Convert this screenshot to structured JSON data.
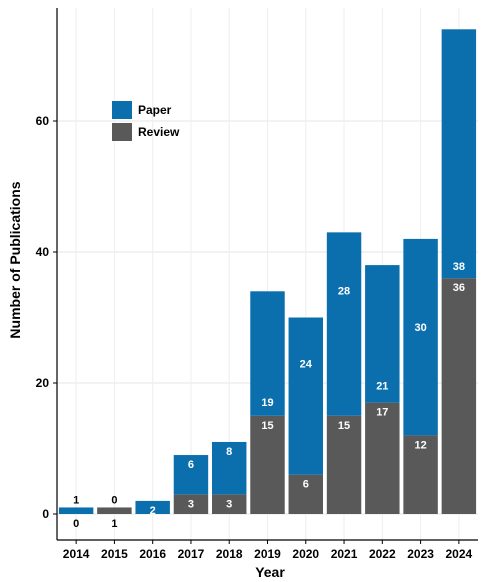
{
  "chart_data": {
    "type": "bar",
    "stacked": true,
    "categories": [
      "2014",
      "2015",
      "2016",
      "2017",
      "2018",
      "2019",
      "2020",
      "2021",
      "2022",
      "2023",
      "2024"
    ],
    "series": [
      {
        "name": "Review",
        "values": [
          0,
          1,
          0,
          3,
          3,
          15,
          6,
          15,
          17,
          12,
          36
        ],
        "color": "#595959"
      },
      {
        "name": "Paper",
        "values": [
          1,
          0,
          2,
          6,
          8,
          19,
          24,
          28,
          21,
          30,
          38
        ],
        "color": "#0b6fae"
      }
    ],
    "data_labels": {
      "Review": [
        "0",
        "1",
        "",
        "3",
        "3",
        "15",
        "6",
        "15",
        "17",
        "12",
        "36"
      ],
      "Paper": [
        "1",
        "0",
        "2",
        "6",
        "8",
        "19",
        "24",
        "28",
        "21",
        "30",
        "38"
      ]
    },
    "title": "",
    "xlabel": "Year",
    "ylabel": "Number of Publications",
    "ylim": [
      0,
      75
    ],
    "yticks": [
      0,
      20,
      40,
      60
    ],
    "grid": true,
    "legend": {
      "position": "upper-left",
      "entries": [
        "Paper",
        "Review"
      ]
    }
  }
}
